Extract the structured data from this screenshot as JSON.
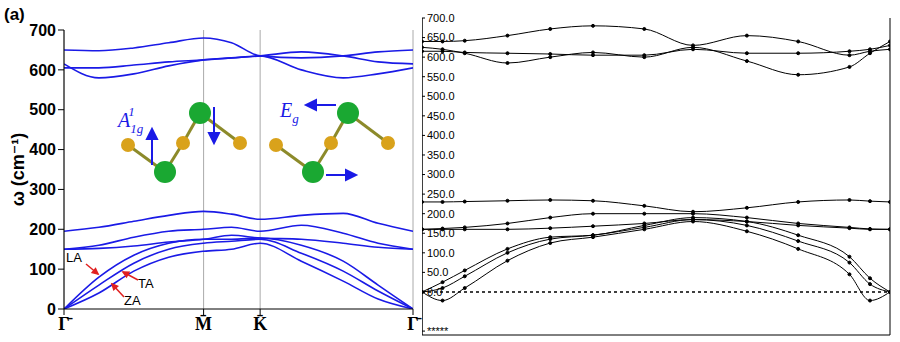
{
  "chart_data": [
    {
      "type": "line",
      "title": "(a)",
      "ylabel": "ω (cm⁻¹)",
      "x": [
        0,
        0.25,
        0.5,
        0.75,
        1,
        1.2,
        1.405,
        1.7,
        2.0,
        2.25,
        2.5
      ],
      "xlim": [
        0,
        2.5
      ],
      "xticks": [
        {
          "value": 0,
          "label": "Γ̄"
        },
        {
          "value": 1,
          "label": "M̄"
        },
        {
          "value": 1.405,
          "label": "K̄"
        },
        {
          "value": 2.5,
          "label": "Γ̄"
        }
      ],
      "ylim": [
        0,
        700
      ],
      "yticks": [
        0,
        100,
        200,
        300,
        400,
        500,
        600,
        700
      ],
      "grid": "x",
      "annotations": [
        {
          "text": "LA"
        },
        {
          "text": "TA"
        },
        {
          "text": "ZA"
        }
      ],
      "inset_labels": [
        {
          "base": "A",
          "sub": "1g",
          "sup": "1"
        },
        {
          "base": "E",
          "sub": "g"
        }
      ],
      "series": [
        {
          "color": "#1a1ae6",
          "values": [
            0,
            40,
            95,
            130,
            145,
            150,
            165,
            120,
            70,
            25,
            0
          ]
        },
        {
          "color": "#1a1ae6",
          "values": [
            0,
            60,
            115,
            150,
            165,
            170,
            175,
            140,
            95,
            45,
            0
          ]
        },
        {
          "color": "#1a1ae6",
          "values": [
            0,
            80,
            135,
            165,
            175,
            175,
            178,
            160,
            120,
            60,
            0
          ]
        },
        {
          "color": "#1a1ae6",
          "values": [
            150,
            152,
            158,
            168,
            175,
            185,
            178,
            175,
            165,
            155,
            150
          ]
        },
        {
          "color": "#1a1ae6",
          "values": [
            150,
            160,
            180,
            195,
            200,
            205,
            195,
            210,
            190,
            165,
            150
          ]
        },
        {
          "color": "#1a1ae6",
          "values": [
            195,
            205,
            220,
            235,
            245,
            238,
            225,
            235,
            240,
            215,
            195
          ]
        },
        {
          "color": "#1a1ae6",
          "values": [
            650,
            648,
            655,
            668,
            680,
            668,
            635,
            630,
            635,
            645,
            650
          ]
        },
        {
          "color": "#1a1ae6",
          "values": [
            615,
            580,
            590,
            610,
            625,
            630,
            635,
            645,
            635,
            620,
            615
          ]
        },
        {
          "color": "#1a1ae6",
          "values": [
            605,
            605,
            612,
            620,
            625,
            630,
            635,
            600,
            580,
            590,
            605
          ]
        }
      ]
    },
    {
      "type": "line",
      "x": [
        0,
        0.12,
        0.25,
        0.5,
        0.75,
        1,
        1.3,
        1.585,
        1.9,
        2.2,
        2.5,
        2.62,
        2.737
      ],
      "xlim": [
        0,
        2.737
      ],
      "xticks": [
        0,
        1,
        1.585,
        2.737
      ],
      "ylim": [
        -110,
        700
      ],
      "yticks": [
        {
          "value": -100,
          "label": "*****"
        },
        {
          "value": 0,
          "label": "0.0"
        },
        {
          "value": 50,
          "label": "50.0"
        },
        {
          "value": 100,
          "label": "100.0"
        },
        {
          "value": 150,
          "label": "150.0"
        },
        {
          "value": 200,
          "label": "200.0"
        },
        {
          "value": 250,
          "label": "250.0"
        },
        {
          "value": 300,
          "label": "300.0"
        },
        {
          "value": 350,
          "label": "350.0"
        },
        {
          "value": 400,
          "label": "400.0"
        },
        {
          "value": 450,
          "label": "450.0"
        },
        {
          "value": 500,
          "label": "500.0"
        },
        {
          "value": 550,
          "label": "550.0"
        },
        {
          "value": 600,
          "label": "600.0"
        },
        {
          "value": 650,
          "label": "650.0"
        },
        {
          "value": 700,
          "label": "700.0"
        }
      ],
      "grid": "x",
      "tick_labels": "y",
      "series": [
        {
          "color": "#000000",
          "x": [
            0,
            2.737
          ],
          "values": [
            0,
            0
          ],
          "line_style": "dashed"
        },
        {
          "color": "#000000",
          "marker": "circle",
          "values": [
            0,
            -22,
            10,
            80,
            125,
            140,
            160,
            180,
            155,
            110,
            45,
            -22,
            0
          ]
        },
        {
          "color": "#000000",
          "marker": "circle",
          "values": [
            0,
            10,
            40,
            100,
            135,
            145,
            165,
            185,
            170,
            130,
            75,
            20,
            0
          ]
        },
        {
          "color": "#000000",
          "marker": "circle",
          "values": [
            0,
            25,
            55,
            110,
            140,
            145,
            170,
            190,
            180,
            145,
            90,
            35,
            0
          ]
        },
        {
          "color": "#000000",
          "marker": "circle",
          "values": [
            160,
            160,
            160,
            160,
            163,
            168,
            175,
            185,
            180,
            170,
            163,
            160,
            160
          ]
        },
        {
          "color": "#000000",
          "marker": "circle",
          "values": [
            160,
            162,
            165,
            175,
            190,
            200,
            200,
            200,
            190,
            175,
            165,
            161,
            160
          ]
        },
        {
          "color": "#000000",
          "marker": "circle",
          "values": [
            230,
            230,
            231,
            233,
            235,
            233,
            220,
            205,
            215,
            230,
            235,
            232,
            230
          ]
        },
        {
          "color": "#000000",
          "marker": "circle",
          "values": [
            640,
            640,
            642,
            655,
            672,
            680,
            672,
            630,
            655,
            640,
            605,
            615,
            620
          ]
        },
        {
          "color": "#000000",
          "marker": "circle",
          "values": [
            625,
            620,
            610,
            585,
            600,
            612,
            600,
            625,
            590,
            555,
            575,
            610,
            640
          ]
        },
        {
          "color": "#000000",
          "marker": "circle",
          "values": [
            615,
            615,
            612,
            610,
            608,
            605,
            605,
            620,
            610,
            610,
            615,
            620,
            630
          ]
        }
      ]
    }
  ]
}
